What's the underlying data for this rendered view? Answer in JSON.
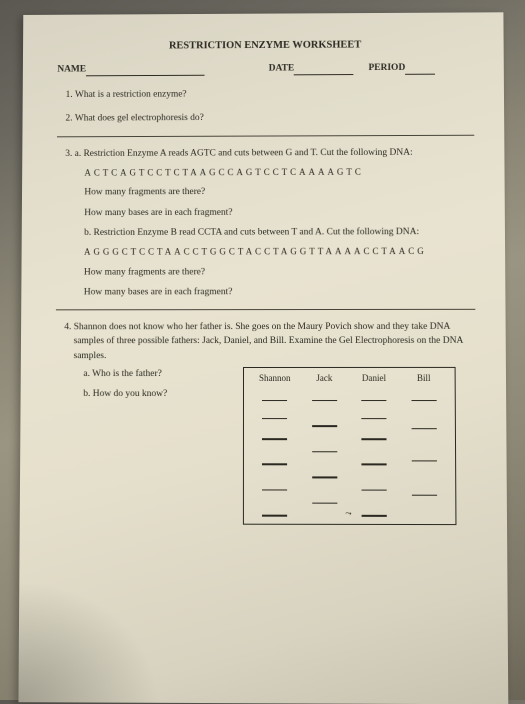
{
  "title": "RESTRICTION ENZYME WORKSHEET",
  "header": {
    "name_label": "NAME",
    "date_label": "DATE",
    "period_label": "PERIOD"
  },
  "q1": "What is a restriction enzyme?",
  "q2": "What does gel electrophoresis do?",
  "q3": {
    "a_intro": "a.  Restriction Enzyme A reads AGTC and cuts between G and T.  Cut  the following DNA:",
    "a_dna": "ACTCAGTCCTCTAAGCCAGTCCTCAAAAGTC",
    "frag_q": "How many fragments are there?",
    "bases_q": "How many bases are in each fragment?",
    "b_intro": "b.  Restriction Enzyme B read CCTA and cuts between T and A.  Cut the following DNA:",
    "b_dna": "AGGGCTCCTAACCTGGCTACCTAGGTTAAAACCTAACG"
  },
  "q4": {
    "intro": "Shannon does not know who her father is.  She goes on the Maury Povich show and they take DNA samples of three possible fathers:  Jack, Daniel, and Bill.  Examine the Gel Electrophoresis on the DNA samples.",
    "a": "a.   Who is the father?",
    "b": "b.   How do you know?"
  },
  "gel": {
    "columns": [
      "Shannon",
      "Jack",
      "Daniel",
      "Bill"
    ],
    "lanes": {
      "shannon": [
        8,
        22,
        38,
        58,
        78,
        98
      ],
      "jack": [
        8,
        28,
        48,
        68,
        88
      ],
      "daniel": [
        8,
        22,
        38,
        58,
        78,
        98
      ],
      "bill": [
        8,
        30,
        55,
        82
      ]
    },
    "band_color": "#2a2820",
    "border_color": "#2a2820"
  }
}
